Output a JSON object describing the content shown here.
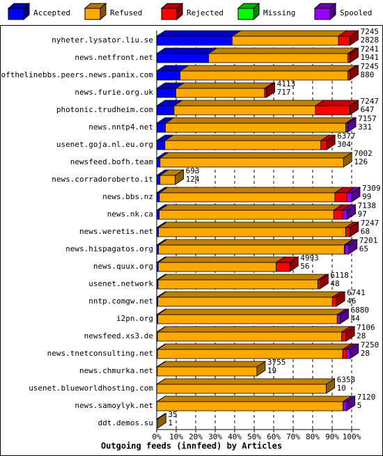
{
  "chart_data": {
    "type": "bar3d_stacked_h",
    "title": "Outgoing feeds (innfeed) by Articles",
    "categories": [
      "nyheter.lysator.liu.se",
      "news.netfront.net",
      "endofthelinebbs.peers.news.panix.com",
      "news.furie.org.uk",
      "photonic.trudheim.com",
      "news.nntp4.net",
      "usenet.goja.nl.eu.org",
      "newsfeed.bofh.team",
      "news.corradoroberto.it",
      "news.bbs.nz",
      "news.nk.ca",
      "news.weretis.net",
      "news.hispagatos.org",
      "news.quux.org",
      "usenet.network",
      "nntp.comgw.net",
      "i2pn.org",
      "newsfeed.xs3.de",
      "news.tnetconsulting.net",
      "news.chmurka.net",
      "usenet.blueworldhosting.com",
      "news.samoylyk.net",
      "ddt.demos.su"
    ],
    "series": [
      {
        "name": "Accepted",
        "color": "#0000ff",
        "values": [
          38.7,
          26.6,
          12,
          9.8,
          8.9,
          4.5,
          4.2,
          1.7,
          1.7,
          1.4,
          1.3,
          0.9,
          0.9,
          0.8,
          0.7,
          0.6,
          0.6,
          0.4,
          0.4,
          0.3,
          0.1,
          0.1,
          0.01
        ]
      },
      {
        "name": "Refused",
        "color": "#ffaa00",
        "values": [
          54.5,
          71.4,
          86,
          45.5,
          72.5,
          92.5,
          80,
          94.1,
          7.8,
          90,
          89.5,
          96,
          95.3,
          60.5,
          82,
          89.5,
          92,
          94.5,
          95,
          51.1,
          86.9,
          95.5,
          0.49
        ]
      },
      {
        "name": "Rejected",
        "color": "#ff0000",
        "values": [
          5.9,
          1.1,
          1.1,
          1,
          17.7,
          0,
          3,
          0,
          0,
          6,
          4.5,
          2.3,
          0.5,
          7,
          1,
          2.1,
          0,
          2.3,
          2,
          0,
          0,
          0,
          0
        ]
      },
      {
        "name": "Missing",
        "color": "#00ff00",
        "values": [
          0,
          0,
          0,
          0,
          0,
          0,
          0,
          0,
          0,
          0,
          0,
          0,
          0,
          0,
          0,
          0,
          0,
          0,
          0,
          0,
          0,
          0,
          0
        ]
      },
      {
        "name": "Spooled",
        "color": "#9900ff",
        "values": [
          0,
          0,
          0,
          0,
          0,
          0.9,
          0,
          0,
          0,
          2.6,
          2.4,
          0,
          1.8,
          0,
          0,
          0,
          1.5,
          0,
          1.8,
          0,
          0,
          1.8,
          0
        ]
      }
    ],
    "offered": [
      7245,
      7241,
      7245,
      4113,
      7247,
      7157,
      6377,
      7002,
      693,
      7309,
      7138,
      7247,
      7201,
      4993,
      6118,
      6741,
      6880,
      7106,
      7250,
      3755,
      6358,
      7120,
      35
    ],
    "accepted_articles": [
      2828,
      1941,
      880,
      717,
      647,
      331,
      304,
      126,
      124,
      99,
      97,
      68,
      65,
      56,
      48,
      46,
      44,
      28,
      28,
      19,
      10,
      5,
      1
    ],
    "xlim": [
      0,
      100
    ],
    "xticks": [
      {
        "value": 0,
        "label": "0%"
      },
      {
        "value": 10,
        "label": "10%"
      },
      {
        "value": 20,
        "label": "20%"
      },
      {
        "value": 30,
        "label": "30%"
      },
      {
        "value": 40,
        "label": "40%"
      },
      {
        "value": 50,
        "label": "50%"
      },
      {
        "value": 60,
        "label": "60%"
      },
      {
        "value": 70,
        "label": "70%"
      },
      {
        "value": 80,
        "label": "80%"
      },
      {
        "value": 90,
        "label": "90%"
      },
      {
        "value": 100,
        "label": "100%"
      }
    ],
    "grid": true
  }
}
